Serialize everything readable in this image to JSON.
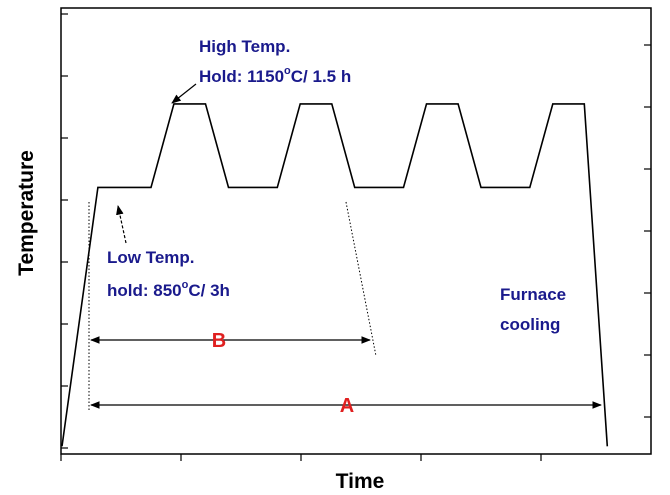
{
  "chart_data": {
    "type": "line",
    "title": "",
    "xlabel": "Time",
    "ylabel": "Temperature",
    "x_ticklabels": [],
    "y_ticklabels": [],
    "grid": false,
    "series": [
      {
        "points": [
          [
            0,
            0.5
          ],
          [
            1.25,
            3.6
          ],
          [
            3.1,
            3.6
          ],
          [
            3.9,
            4.6
          ],
          [
            5.0,
            4.6
          ],
          [
            5.8,
            3.6
          ],
          [
            7.5,
            3.6
          ],
          [
            8.3,
            4.6
          ],
          [
            9.4,
            4.6
          ],
          [
            10.2,
            3.6
          ],
          [
            11.9,
            3.6
          ],
          [
            12.7,
            4.6
          ],
          [
            13.8,
            4.6
          ],
          [
            14.6,
            3.6
          ],
          [
            16.3,
            3.6
          ],
          [
            17.1,
            4.6
          ],
          [
            18.2,
            4.6
          ],
          [
            19.0,
            0.5
          ]
        ]
      }
    ],
    "annotations": {
      "high_temp_line1": "High Temp.",
      "high_temp_line2_prefix": "Hold: 1150",
      "high_temp_line2_sup": "o",
      "high_temp_line2_suffix": "C/ 1.5 h",
      "low_temp_line1": "Low Temp.",
      "low_temp_line2_prefix": "hold: 850",
      "low_temp_line2_sup": "o",
      "low_temp_line2_suffix": "C/ 3h",
      "furnace_line1": "Furnace",
      "furnace_line2": "cooling",
      "label_b": "B",
      "label_a": "A"
    },
    "colors": {
      "annotation": "#1a1a8c",
      "interval_label": "#e02020",
      "line": "#000000"
    }
  }
}
